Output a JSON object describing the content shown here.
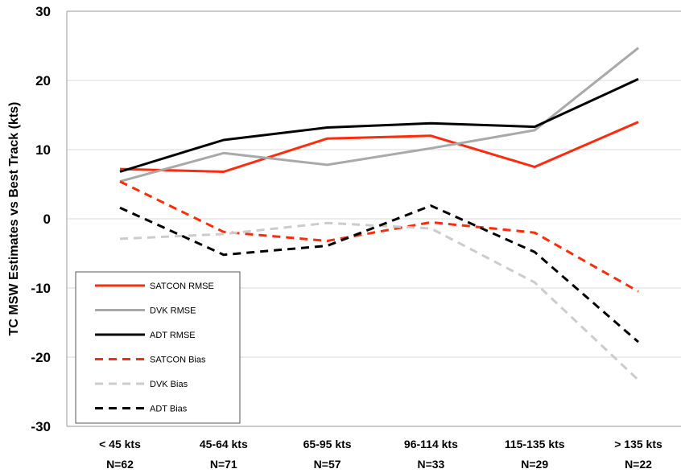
{
  "chart_data": {
    "type": "line",
    "title": "",
    "xlabel": "",
    "ylabel": "TC MSW Estimates vs Best  Track (kts)",
    "ylim": [
      -30,
      30
    ],
    "yticks": [
      30,
      20,
      10,
      0,
      -10,
      -20,
      -30
    ],
    "grid": true,
    "legend_position": "bottom-left",
    "categories": [
      {
        "range": "< 45 kts",
        "n": "N=62"
      },
      {
        "range": "45-64 kts",
        "n": "N=71"
      },
      {
        "range": "65-95 kts",
        "n": "N=57"
      },
      {
        "range": "96-114 kts",
        "n": "N=33"
      },
      {
        "range": "115-135 kts",
        "n": "N=29"
      },
      {
        "range": "> 135 kts",
        "n": "N=22"
      }
    ],
    "series": [
      {
        "name": "SATCON RMSE",
        "color": "#ff2a0a",
        "style": "solid",
        "values": [
          7.2,
          6.8,
          11.6,
          12.0,
          7.5,
          14.0
        ]
      },
      {
        "name": "DVK RMSE",
        "color": "#a9a9a9",
        "style": "solid",
        "values": [
          5.4,
          9.5,
          7.8,
          10.2,
          12.8,
          24.7
        ]
      },
      {
        "name": "ADT RMSE",
        "color": "#000000",
        "style": "solid",
        "values": [
          6.8,
          11.4,
          13.2,
          13.8,
          13.3,
          20.2
        ]
      },
      {
        "name": "SATCON Bias",
        "color": "#ff2a0a",
        "style": "dashed",
        "values": [
          5.4,
          -1.9,
          -3.2,
          -0.5,
          -2.0,
          -10.5
        ]
      },
      {
        "name": "DVK Bias",
        "color": "#cccccc",
        "style": "dashed",
        "values": [
          -2.9,
          -2.2,
          -0.6,
          -1.4,
          -9.2,
          -23.3
        ]
      },
      {
        "name": "ADT Bias",
        "color": "#000000",
        "style": "dashed",
        "values": [
          1.6,
          -5.2,
          -3.9,
          1.9,
          -4.8,
          -17.8
        ]
      }
    ]
  }
}
